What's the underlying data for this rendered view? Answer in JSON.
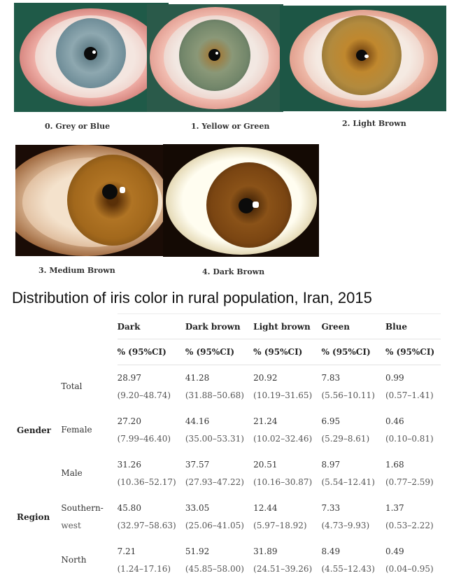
{
  "captions": [
    "0. Grey or Blue",
    "1. Yellow or Green",
    "2. Light Brown",
    "3. Medium Brown",
    "4. Dark Brown"
  ],
  "title": "Distribution of iris color in rural population, Iran, 2015",
  "table": {
    "columns": [
      "Dark",
      "Dark brown",
      "Light brown",
      "Green",
      "Blue"
    ],
    "subheader": "% (95%CI)",
    "rows": [
      {
        "group": "",
        "label": "Total",
        "label2": "",
        "values": [
          "28.97",
          "41.28",
          "20.92",
          "7.83",
          "0.99"
        ],
        "ci": [
          "(9.20–48.74)",
          "(31.88–50.68)",
          "(10.19–31.65)",
          "(5.56–10.11)",
          "(0.57–1.41)"
        ]
      },
      {
        "group": "Gender",
        "label": "Female",
        "label2": "",
        "values": [
          "27.20",
          "44.16",
          "21.24",
          "6.95",
          "0.46"
        ],
        "ci": [
          "(7.99–46.40)",
          "(35.00–53.31)",
          "(10.02–32.46)",
          "(5.29–8.61)",
          "(0.10–0.81)"
        ]
      },
      {
        "group": "",
        "label": "Male",
        "label2": "",
        "values": [
          "31.26",
          "37.57",
          "20.51",
          "8.97",
          "1.68"
        ],
        "ci": [
          "(10.36–52.17)",
          "(27.93–47.22)",
          "(10.16–30.87)",
          "(5.54–12.41)",
          "(0.77–2.59)"
        ]
      },
      {
        "group": "Region",
        "label": "Southern-",
        "label2": "west",
        "values": [
          "45.80",
          "33.05",
          "12.44",
          "7.33",
          "1.37"
        ],
        "ci": [
          "(32.97–58.63)",
          "(25.06–41.05)",
          "(5.97–18.92)",
          "(4.73–9.93)",
          "(0.53–2.22)"
        ]
      },
      {
        "group": "",
        "label": "North",
        "label2": "",
        "values": [
          "7.21",
          "51.92",
          "31.89",
          "8.49",
          "0.49"
        ],
        "ci": [
          "(1.24–17.16)",
          "(45.85–58.00)",
          "(24.51–39.26)",
          "(4.55–12.43)",
          "(0.04–0.95)"
        ]
      }
    ]
  },
  "iris_colors": {
    "grey_blue": "#7f9aa6",
    "yellow_green": "#7d8f70",
    "light_brown": "#b07a2a",
    "medium_brown": "#a0651c",
    "dark_brown": "#7a4512"
  }
}
